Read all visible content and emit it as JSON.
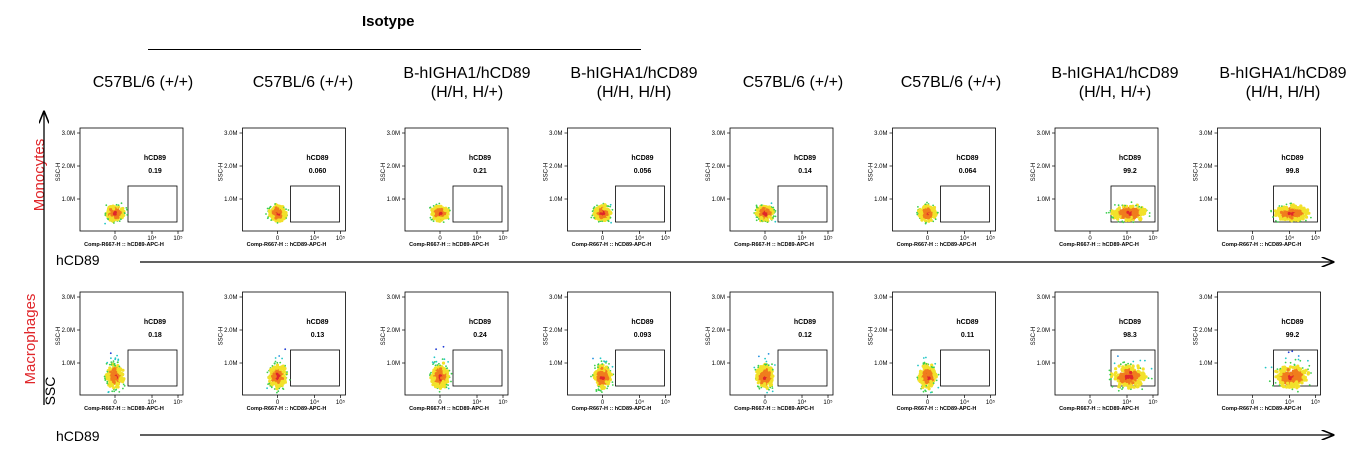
{
  "header": {
    "isotype_label": "Isotype"
  },
  "columns": [
    "C57BL/6 (+/+)",
    "C57BL/6 (+/+)",
    "B-hIGHA1/hCD89\n(H/H, H/+)",
    "B-hIGHA1/hCD89\n(H/H, H/H)",
    "C57BL/6 (+/+)",
    "C57BL/6 (+/+)",
    "B-hIGHA1/hCD89\n(H/H, H/+)",
    "B-hIGHA1/hCD89\n(H/H, H/H)"
  ],
  "rows": {
    "monocytes_label": "Monocytes",
    "macrophages_label": "Macrophages"
  },
  "axes": {
    "x_arrow_label": "hCD89",
    "y_arrow_label": "SSC",
    "panel_xlabel": "Comp-R667-H :: hCD89-APC-H",
    "panel_ylabel": "SSC-H",
    "y_ticks": [
      "3.0M",
      "2.0M",
      "1.0M"
    ],
    "x_ticks": [
      "0",
      "10⁴",
      "10⁵"
    ]
  },
  "chart_data": {
    "type": "scatter",
    "gate_label": "hCD89",
    "unit": "% hCD89+",
    "series": [
      {
        "name": "Monocytes",
        "values": [
          0.19,
          0.06,
          0.21,
          0.056,
          0.14,
          0.064,
          99.2,
          99.8
        ]
      },
      {
        "name": "Macrophages",
        "values": [
          0.18,
          0.13,
          0.24,
          0.093,
          0.12,
          0.11,
          98.3,
          99.2
        ]
      }
    ],
    "value_labels": {
      "Monocytes": [
        "0.19",
        "0.060",
        "0.21",
        "0.056",
        "0.14",
        "0.064",
        "99.2",
        "99.8"
      ],
      "Macrophages": [
        "0.18",
        "0.13",
        "0.24",
        "0.093",
        "0.12",
        "0.11",
        "98.3",
        "99.2"
      ]
    }
  }
}
